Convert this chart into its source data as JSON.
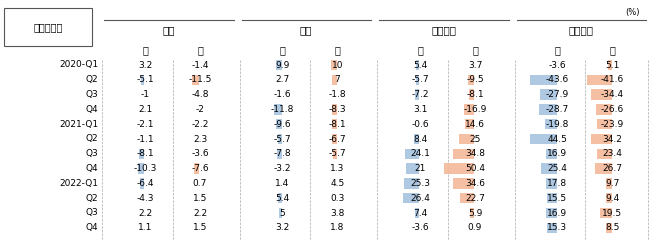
{
  "title_box": "芸術・娯楽",
  "unit_label": "(%)",
  "countries": [
    "日本",
    "韓国",
    "フランス",
    "アメリカ"
  ],
  "gender_labels": [
    "男",
    "女"
  ],
  "row_labels": [
    "2020-Q1",
    "Q2",
    "Q3",
    "Q4",
    "2021-Q1",
    "Q2",
    "Q3",
    "Q4",
    "2022-Q1",
    "Q2",
    "Q3",
    "Q4"
  ],
  "data": {
    "日本": {
      "男": [
        3.2,
        -5.1,
        -1.0,
        2.1,
        -2.1,
        -1.1,
        -8.1,
        -10.3,
        -6.4,
        -4.3,
        2.2,
        1.1
      ],
      "女": [
        -1.4,
        -11.5,
        -4.8,
        -2.0,
        -2.2,
        2.3,
        -3.6,
        -7.6,
        0.7,
        1.5,
        2.2,
        1.5
      ]
    },
    "韓国": {
      "男": [
        9.9,
        2.7,
        -1.6,
        -11.8,
        -9.6,
        -5.7,
        -7.8,
        -3.2,
        1.4,
        5.4,
        5.0,
        3.2
      ],
      "女": [
        10.0,
        7.0,
        -1.8,
        -8.3,
        -8.1,
        -6.7,
        -5.7,
        1.3,
        4.5,
        0.3,
        3.8,
        1.8
      ]
    },
    "フランス": {
      "男": [
        5.4,
        -5.7,
        -7.2,
        3.1,
        -0.6,
        8.4,
        24.1,
        21.0,
        25.3,
        26.4,
        7.4,
        -3.6
      ],
      "女": [
        3.7,
        -9.5,
        -8.1,
        -16.9,
        14.6,
        25.0,
        34.8,
        50.4,
        34.6,
        22.7,
        5.9,
        0.9
      ]
    },
    "アメリカ": {
      "男": [
        -3.6,
        -43.6,
        -27.9,
        -28.7,
        -19.8,
        44.5,
        16.9,
        25.4,
        17.8,
        15.5,
        16.9,
        15.3
      ],
      "女": [
        5.1,
        -41.6,
        -34.4,
        -26.6,
        -23.9,
        34.2,
        23.4,
        26.7,
        9.7,
        9.4,
        19.5,
        8.5
      ]
    }
  },
  "male_color": "#a8c4e0",
  "female_color": "#f4b89a",
  "bar_threshold": 5.0,
  "bg_color": "#ffffff",
  "text_color": "#000000",
  "line_color": "#555555",
  "dash_color": "#aaaaaa"
}
